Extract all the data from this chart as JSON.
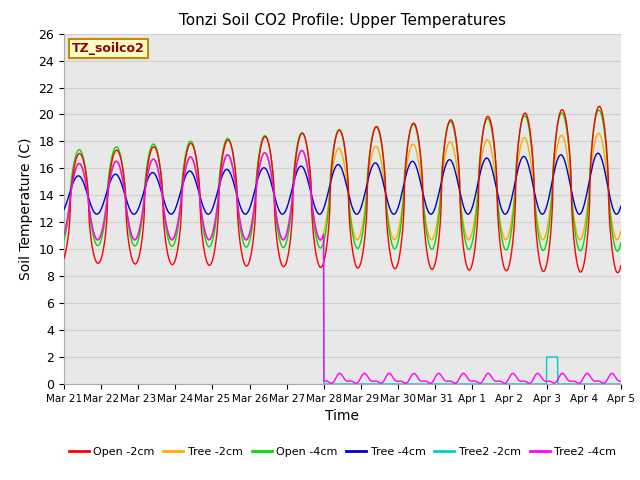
{
  "title": "Tonzi Soil CO2 Profile: Upper Temperatures",
  "xlabel": "Time",
  "ylabel": "Soil Temperature (C)",
  "ylim": [
    0,
    26
  ],
  "annotation_text": "TZ_soilco2",
  "annotation_bg": "#ffffcc",
  "annotation_border": "#cc8800",
  "grid_color": "#d0d0d0",
  "background_color": "#e8e8e8",
  "x_tick_labels": [
    "Mar 21",
    "Mar 22",
    "Mar 23",
    "Mar 24",
    "Mar 25",
    "Mar 26",
    "Mar 27",
    "Mar 28",
    "Mar 29",
    "Mar 30",
    "Mar 31",
    "Apr 1",
    "Apr 2",
    "Apr 3",
    "Apr 4",
    "Apr 5"
  ],
  "series": {
    "Open -2cm": {
      "color": "#ff0000"
    },
    "Tree -2cm": {
      "color": "#ffaa00"
    },
    "Open -4cm": {
      "color": "#00dd00"
    },
    "Tree -4cm": {
      "color": "#0000cc"
    },
    "Tree2 -2cm": {
      "color": "#00cccc"
    },
    "Tree2 -4cm": {
      "color": "#ff00ff"
    }
  },
  "legend_items": [
    {
      "label": "Open -2cm",
      "color": "#ff0000"
    },
    {
      "label": "Tree -2cm",
      "color": "#ffaa00"
    },
    {
      "label": "Open -4cm",
      "color": "#00dd00"
    },
    {
      "label": "Tree -4cm",
      "color": "#0000cc"
    },
    {
      "label": "Tree2 -2cm",
      "color": "#00cccc"
    },
    {
      "label": "Tree2 -4cm",
      "color": "#ff00ff"
    }
  ]
}
